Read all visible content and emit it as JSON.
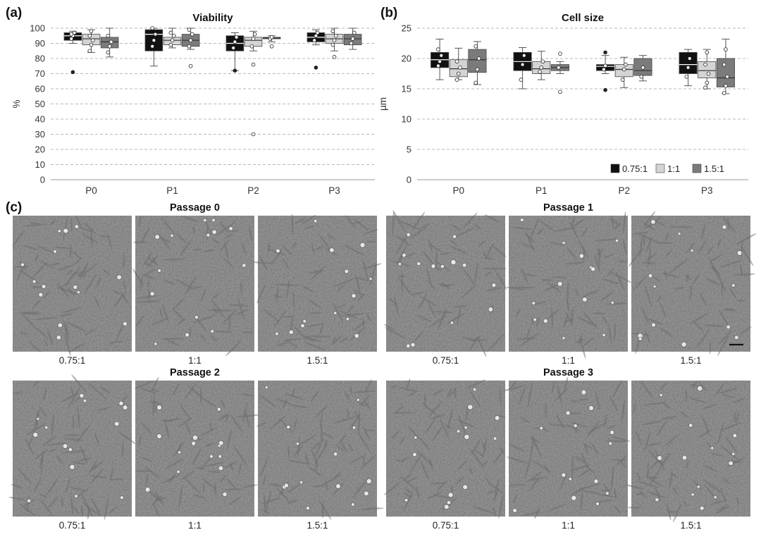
{
  "panel_labels": {
    "a": "(a)",
    "b": "(b)",
    "c": "(c)"
  },
  "colors": {
    "g1": "#111111",
    "g2": "#d4d4d4",
    "g3": "#7b7b7b",
    "grid": "#b8b8b8",
    "micro": "#9b9b9b"
  },
  "chart_data": [
    {
      "type": "box",
      "title": "Viability",
      "ylabel": "%",
      "ylim": [
        0,
        100
      ],
      "yticks": [
        0,
        10,
        20,
        30,
        40,
        50,
        60,
        70,
        80,
        90,
        100
      ],
      "grid": true,
      "categories": [
        "P0",
        "P1",
        "P2",
        "P3"
      ],
      "series": [
        {
          "name": "0.75:1",
          "boxes": [
            {
              "min": 90,
              "q1": 92,
              "median": 95,
              "q3": 97,
              "max": 98,
              "points": [
                93,
                95,
                97,
                96
              ],
              "outliers": [
                71
              ]
            },
            {
              "min": 75,
              "q1": 85,
              "median": 96,
              "q3": 99,
              "max": 100,
              "points": [
                88,
                92,
                96,
                100
              ],
              "outliers": []
            },
            {
              "min": 72,
              "q1": 85,
              "median": 90,
              "q3": 95,
              "max": 97,
              "points": [
                87,
                91,
                94
              ],
              "outliers": [
                72
              ]
            },
            {
              "min": 89,
              "q1": 91,
              "median": 94,
              "q3": 97,
              "max": 99,
              "points": [
                92,
                95,
                97
              ],
              "outliers": [
                74
              ]
            }
          ]
        },
        {
          "name": "1:1",
          "boxes": [
            {
              "min": 84,
              "q1": 89,
              "median": 93,
              "q3": 96,
              "max": 99,
              "points": [
                85,
                89,
                92,
                95,
                98
              ],
              "outliers": []
            },
            {
              "min": 87,
              "q1": 89,
              "median": 92,
              "q3": 94,
              "max": 100,
              "points": [
                89,
                92,
                95,
                97
              ],
              "outliers": []
            },
            {
              "min": 85,
              "q1": 88,
              "median": 92,
              "q3": 94,
              "max": 98,
              "points": [
                88,
                93,
                96
              ],
              "outliers": [
                76,
                30
              ]
            },
            {
              "min": 85,
              "q1": 90,
              "median": 93,
              "q3": 96,
              "max": 100,
              "points": [
                89,
                92,
                95,
                98
              ],
              "outliers": [
                81
              ]
            }
          ]
        },
        {
          "name": "1.5:1",
          "boxes": [
            {
              "min": 81,
              "q1": 87,
              "median": 91,
              "q3": 94,
              "max": 100,
              "points": [
                84,
                88,
                91,
                95
              ],
              "outliers": []
            },
            {
              "min": 86,
              "q1": 88,
              "median": 92,
              "q3": 96,
              "max": 100,
              "points": [
                88,
                92,
                96,
                99
              ],
              "outliers": [
                75
              ]
            },
            {
              "min": 91,
              "q1": 93,
              "median": 93.5,
              "q3": 94,
              "max": 95,
              "points": [
                93,
                94
              ],
              "outliers": [
                88
              ]
            },
            {
              "min": 86,
              "q1": 89,
              "median": 93,
              "q3": 96,
              "max": 100,
              "points": [
                90,
                93,
                97
              ],
              "outliers": []
            }
          ]
        }
      ]
    },
    {
      "type": "box",
      "title": "Cell size",
      "ylabel": "µm",
      "ylim": [
        0,
        25
      ],
      "yticks": [
        0,
        5,
        10,
        15,
        20,
        25
      ],
      "grid": true,
      "legend": "bottom-right",
      "categories": [
        "P0",
        "P1",
        "P2",
        "P3"
      ],
      "series": [
        {
          "name": "0.75:1",
          "boxes": [
            {
              "min": 16.5,
              "q1": 18.5,
              "median": 19.8,
              "q3": 21.0,
              "max": 23.2,
              "points": [
                18.8,
                19.5,
                20.5,
                21.5
              ],
              "outliers": []
            },
            {
              "min": 15.0,
              "q1": 18.0,
              "median": 19.5,
              "q3": 21.0,
              "max": 21.8,
              "points": [
                16.5,
                19.0,
                20.5
              ],
              "outliers": []
            },
            {
              "min": 17.5,
              "q1": 18.0,
              "median": 18.7,
              "q3": 19.0,
              "max": 20.5,
              "points": [
                18.2,
                18.8
              ],
              "outliers": [
                21.0,
                14.8
              ]
            },
            {
              "min": 15.5,
              "q1": 17.5,
              "median": 19.0,
              "q3": 21.0,
              "max": 21.5,
              "points": [
                17.0,
                18.5,
                20.0
              ],
              "outliers": []
            }
          ]
        },
        {
          "name": "1:1",
          "boxes": [
            {
              "min": 16.5,
              "q1": 17.0,
              "median": 18.3,
              "q3": 19.8,
              "max": 21.7,
              "points": [
                16.5,
                17.5,
                18.5,
                19.5
              ],
              "outliers": []
            },
            {
              "min": 16.5,
              "q1": 17.5,
              "median": 18.3,
              "q3": 19.5,
              "max": 21.2,
              "points": [
                17.8,
                18.5,
                19.5
              ],
              "outliers": []
            },
            {
              "min": 15.2,
              "q1": 17.0,
              "median": 18.2,
              "q3": 19.0,
              "max": 20.2,
              "points": [
                16.5,
                18.2,
                19.0
              ],
              "outliers": []
            },
            {
              "min": 15.0,
              "q1": 16.8,
              "median": 18.0,
              "q3": 19.5,
              "max": 21.5,
              "points": [
                15.2,
                16.0,
                17.5,
                19.0,
                21.0
              ],
              "outliers": []
            }
          ]
        },
        {
          "name": "1.5:1",
          "boxes": [
            {
              "min": 15.7,
              "q1": 17.7,
              "median": 19.8,
              "q3": 21.5,
              "max": 22.8,
              "points": [
                16.0,
                18.2,
                20.0,
                22.0
              ],
              "outliers": []
            },
            {
              "min": 17.5,
              "q1": 18.0,
              "median": 18.5,
              "q3": 19.0,
              "max": 19.5,
              "points": [
                18.5
              ],
              "outliers": [
                20.8,
                14.5
              ]
            },
            {
              "min": 16.3,
              "q1": 17.2,
              "median": 18.0,
              "q3": 20.0,
              "max": 20.5,
              "points": [
                17.0,
                18.5
              ],
              "outliers": []
            },
            {
              "min": 14.2,
              "q1": 15.3,
              "median": 16.8,
              "q3": 20.0,
              "max": 23.2,
              "points": [
                14.3,
                15.5,
                17.0,
                19.0,
                21.5
              ],
              "outliers": []
            }
          ]
        }
      ]
    }
  ],
  "micrographs": {
    "passages": [
      {
        "title": "Passage 0",
        "labels": [
          "0.75:1",
          "1:1",
          "1.5:1"
        ]
      },
      {
        "title": "Passage 1",
        "labels": [
          "0.75:1",
          "1:1",
          "1.5:1"
        ]
      },
      {
        "title": "Passage 2",
        "labels": [
          "0.75:1",
          "1:1",
          "1.5:1"
        ]
      },
      {
        "title": "Passage 3",
        "labels": [
          "0.75:1",
          "1:1",
          "1.5:1"
        ]
      }
    ]
  }
}
